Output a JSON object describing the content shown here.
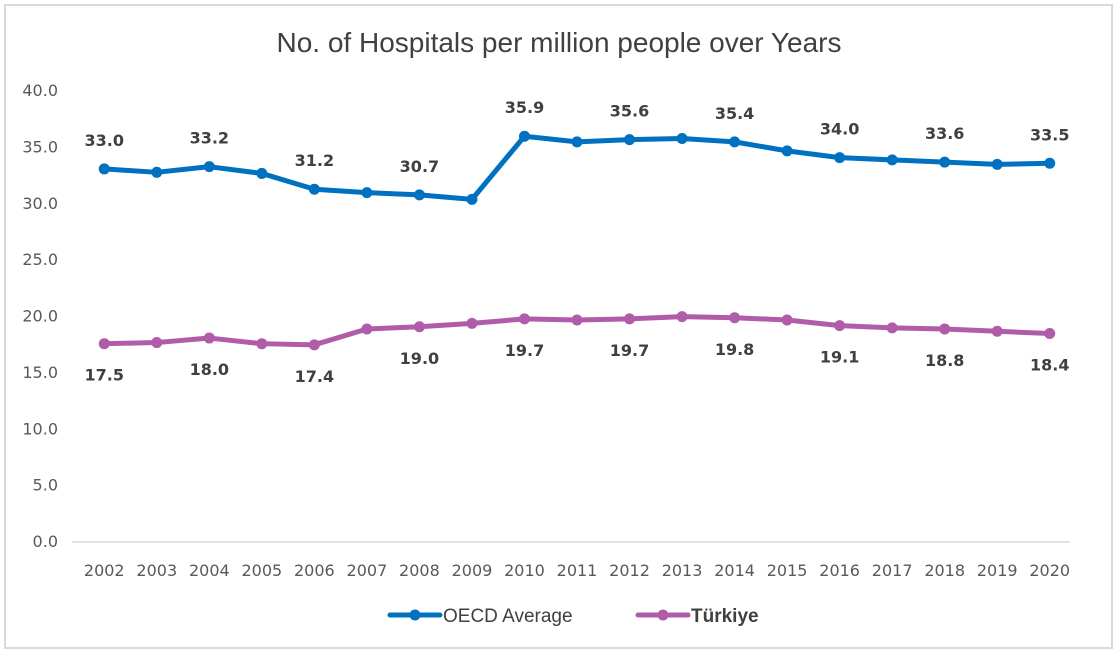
{
  "chart_data": {
    "type": "line",
    "title": "No. of Hospitals per million people over Years",
    "xlabel": "",
    "ylabel": "",
    "categories": [
      "2002",
      "2003",
      "2004",
      "2005",
      "2006",
      "2007",
      "2008",
      "2009",
      "2010",
      "2011",
      "2012",
      "2013",
      "2014",
      "2015",
      "2016",
      "2017",
      "2018",
      "2019",
      "2020"
    ],
    "ylim": [
      0,
      40
    ],
    "yticks": [
      "0.0",
      "5.0",
      "10.0",
      "15.0",
      "20.0",
      "25.0",
      "30.0",
      "35.0",
      "40.0"
    ],
    "grid": false,
    "legend": "bottom",
    "series": [
      {
        "name": "OECD Average",
        "color": "#0070C0",
        "values": [
          33.0,
          32.7,
          33.2,
          32.6,
          31.2,
          30.9,
          30.7,
          30.3,
          35.9,
          35.4,
          35.6,
          35.7,
          35.4,
          34.6,
          34.0,
          33.8,
          33.6,
          33.4,
          33.5
        ],
        "labels": [
          "33.0",
          "",
          "33.2",
          "",
          "31.2",
          "",
          "30.7",
          "",
          "35.9",
          "",
          "35.6",
          "",
          "35.4",
          "",
          "34.0",
          "",
          "33.6",
          "",
          "33.5"
        ],
        "label_position": "above"
      },
      {
        "name": "Türkiye",
        "color": "#B05CA8",
        "values": [
          17.5,
          17.6,
          18.0,
          17.5,
          17.4,
          18.8,
          19.0,
          19.3,
          19.7,
          19.6,
          19.7,
          19.9,
          19.8,
          19.6,
          19.1,
          18.9,
          18.8,
          18.6,
          18.4
        ],
        "labels": [
          "17.5",
          "",
          "18.0",
          "",
          "17.4",
          "",
          "19.0",
          "",
          "19.7",
          "",
          "19.7",
          "",
          "19.8",
          "",
          "19.1",
          "",
          "18.8",
          "",
          "18.4"
        ],
        "label_position": "below"
      }
    ],
    "legend_bold": [
      false,
      true
    ]
  }
}
